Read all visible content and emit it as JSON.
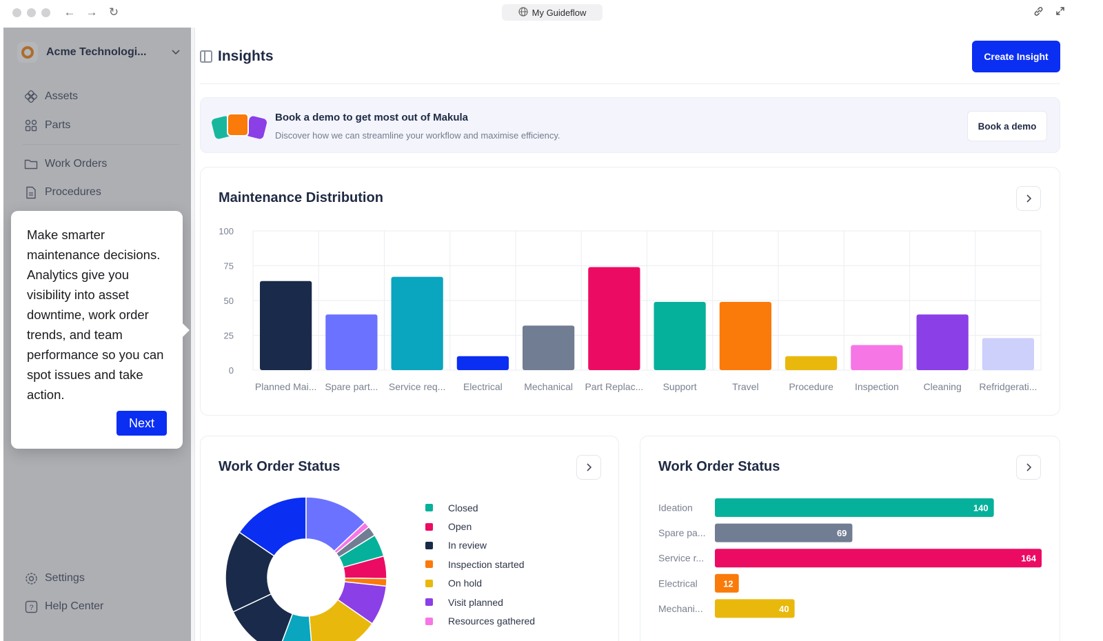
{
  "browser": {
    "url_title": "My Guideflow",
    "back_icon": "arrow-left-icon",
    "forward_icon": "arrow-right-icon",
    "reload_icon": "reload-icon"
  },
  "sidebar": {
    "org_name": "Acme Technologi...",
    "items": [
      {
        "label": "Assets",
        "icon": "assets-icon"
      },
      {
        "label": "Parts",
        "icon": "parts-icon"
      },
      {
        "label": "Work Orders",
        "icon": "folder-icon"
      },
      {
        "label": "Procedures",
        "icon": "document-icon"
      }
    ],
    "bottom": [
      {
        "label": "Settings",
        "icon": "gear-icon"
      },
      {
        "label": "Help Center",
        "icon": "help-icon"
      }
    ]
  },
  "tooltip": {
    "text": "Make smarter maintenance decisions. Analytics give you visibility into asset downtime, work order trends, and team performance so you can spot issues and take action.",
    "next_label": "Next"
  },
  "header": {
    "title": "Insights",
    "create_label": "Create Insight"
  },
  "banner": {
    "title": "Book a demo to get most out of Makula",
    "subtitle": "Discover how we can streamline your workflow and maximise efficiency.",
    "button_label": "Book a demo"
  },
  "chart_data": [
    {
      "type": "bar",
      "title": "Maintenance Distribution",
      "categories": [
        "Planned Mai...",
        "Spare part...",
        "Service req...",
        "Electrical",
        "Mechanical",
        "Part Replac...",
        "Support",
        "Travel",
        "Procedure",
        "Inspection",
        "Cleaning",
        "Refridgerati..."
      ],
      "values": [
        64,
        40,
        67,
        10,
        32,
        74,
        49,
        49,
        10,
        18,
        40,
        23
      ],
      "colors": [
        "#1a2a4a",
        "#6b72ff",
        "#0aa5bf",
        "#0b2ef3",
        "#717d93",
        "#ec0b63",
        "#06b19b",
        "#fa7a0a",
        "#e9b80c",
        "#f776e6",
        "#8b3fe6",
        "#ccd0fb"
      ],
      "yticks": [
        0,
        25,
        50,
        75,
        100
      ],
      "ylim": [
        0,
        100
      ],
      "grid": true
    },
    {
      "type": "pie",
      "title": "Work Order Status",
      "legend_position": "right",
      "labels": [
        "Closed",
        "Open",
        "In review",
        "Inspection started",
        "On hold",
        "Visit planned",
        "Resources gathered"
      ],
      "colors": [
        "#06b19b",
        "#ec0b63",
        "#1a2a4a",
        "#fa7a0a",
        "#e9b80c",
        "#8b3fe6",
        "#f776e6"
      ],
      "slices": [
        {
          "label": "In review",
          "value": 16.5,
          "color": "#1a2a4a"
        },
        {
          "label": "Open",
          "value": 15.5,
          "color": "#0b2ef3"
        },
        {
          "label": "Visit planned",
          "value": 13.0,
          "color": "#6b72ff"
        },
        {
          "label": "Resources gathered",
          "value": 1.2,
          "color": "#f776e6"
        },
        {
          "label": "On hold",
          "value": 2.0,
          "color": "#717d93"
        },
        {
          "label": "Closed",
          "value": 4.5,
          "color": "#06b19b"
        },
        {
          "label": "Open",
          "value": 4.5,
          "color": "#ec0b63"
        },
        {
          "label": "Inspection started",
          "value": 1.5,
          "color": "#fa7a0a"
        },
        {
          "label": "Visit planned",
          "value": 8.0,
          "color": "#8b3fe6"
        },
        {
          "label": "On hold",
          "value": 14.0,
          "color": "#e9b80c"
        },
        {
          "label": "Closed",
          "value": 7.0,
          "color": "#0aa5bf"
        },
        {
          "label": "In review",
          "value": 12.3,
          "color": "#1a2a4a"
        }
      ]
    },
    {
      "type": "bar",
      "orientation": "horizontal",
      "title": "Work Order Status",
      "categories": [
        "Ideation",
        "Spare pa...",
        "Service r...",
        "Electrical",
        "Mechani..."
      ],
      "values": [
        140,
        69,
        164,
        12,
        40
      ],
      "colors": [
        "#06b19b",
        "#717d93",
        "#ec0b63",
        "#fa7a0a",
        "#e9b80c"
      ],
      "xlim": [
        0,
        164
      ]
    }
  ]
}
